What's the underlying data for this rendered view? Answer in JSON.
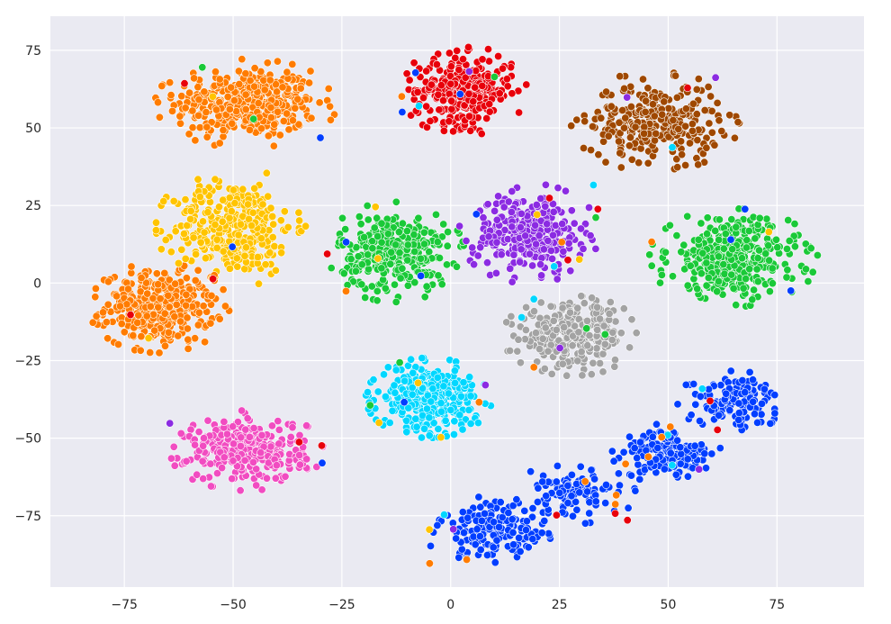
{
  "chart_data": {
    "type": "scatter",
    "title": "",
    "xlabel": "",
    "ylabel": "",
    "xlim": [
      -92,
      95
    ],
    "ylim": [
      -98,
      86
    ],
    "grid": true,
    "legend": "none",
    "background": "#eaeaf2",
    "x_ticks": [
      -75,
      -50,
      -25,
      0,
      25,
      50,
      75
    ],
    "y_ticks": [
      75,
      50,
      25,
      0,
      -25,
      -50,
      -75
    ],
    "x_tick_labels": [
      "−75",
      "−50",
      "−25",
      "0",
      "25",
      "50",
      "75"
    ],
    "y_tick_labels": [
      "75",
      "50",
      "25",
      "0",
      "−25",
      "−50",
      "−75"
    ],
    "clusters": [
      {
        "color": "#ff7c00",
        "center": [
          -47,
          58
        ],
        "spread": [
          13,
          9
        ],
        "count": 420
      },
      {
        "color": "#ff7c00",
        "center": [
          -67,
          -8
        ],
        "spread": [
          10,
          9
        ],
        "count": 380
      },
      {
        "color": "#ffc400",
        "center": [
          -50,
          18
        ],
        "spread": [
          11,
          12
        ],
        "count": 360
      },
      {
        "color": "#e8000b",
        "center": [
          3,
          62
        ],
        "spread": [
          9,
          9
        ],
        "count": 300
      },
      {
        "color": "#9f4800",
        "center": [
          47,
          52
        ],
        "spread": [
          12,
          10
        ],
        "count": 300
      },
      {
        "color": "#1ac938",
        "center": [
          -13,
          10
        ],
        "spread": [
          10,
          10
        ],
        "count": 330
      },
      {
        "color": "#8b2be2",
        "center": [
          18,
          16
        ],
        "spread": [
          10,
          10
        ],
        "count": 300
      },
      {
        "color": "#1ac938",
        "center": [
          65,
          8
        ],
        "spread": [
          12,
          10
        ],
        "count": 380
      },
      {
        "color": "#a3a3a3",
        "center": [
          28,
          -17
        ],
        "spread": [
          10,
          8
        ],
        "count": 300
      },
      {
        "color": "#00d7ff",
        "center": [
          -5,
          -37
        ],
        "spread": [
          9,
          8
        ],
        "count": 340
      },
      {
        "color": "#f14cc1",
        "center": [
          -47,
          -54
        ],
        "spread": [
          11,
          8
        ],
        "count": 320
      },
      {
        "color": "#023eff",
        "center": [
          10,
          -80
        ],
        "spread": [
          10,
          7
        ],
        "count": 160
      },
      {
        "color": "#023eff",
        "center": [
          28,
          -68
        ],
        "spread": [
          9,
          6
        ],
        "count": 100
      },
      {
        "color": "#023eff",
        "center": [
          50,
          -55
        ],
        "spread": [
          8,
          6
        ],
        "count": 160
      },
      {
        "color": "#023eff",
        "center": [
          65,
          -38
        ],
        "spread": [
          8,
          6
        ],
        "count": 140
      }
    ],
    "stray_colors": [
      "#8b2be2",
      "#1ac938",
      "#ffc400",
      "#023eff",
      "#e8000b",
      "#00d7ff",
      "#ff7c00"
    ]
  }
}
